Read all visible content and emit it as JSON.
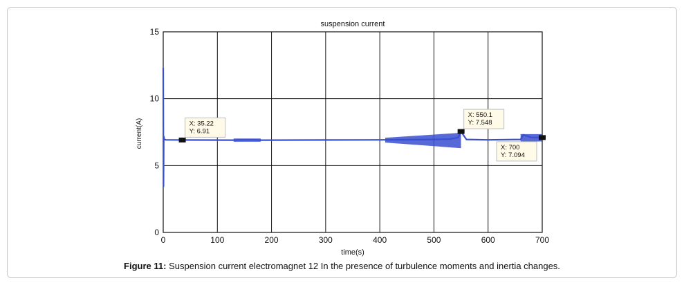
{
  "chart_data": {
    "type": "line",
    "title": "suspension current",
    "xlabel": "time(s)",
    "ylabel": "current(A)",
    "xlim": [
      0,
      700
    ],
    "ylim": [
      0,
      15
    ],
    "xticks": [
      0,
      100,
      200,
      300,
      400,
      500,
      600,
      700
    ],
    "yticks": [
      0,
      5,
      10,
      15
    ],
    "grid": true,
    "line_color": "#3a4fd0",
    "series": [
      {
        "x": [
          0,
          0.5,
          1,
          2,
          5,
          35.22,
          130,
          140,
          150,
          160,
          170,
          180,
          300,
          410,
          450,
          500,
          530,
          545,
          550.1,
          560,
          600,
          660,
          665,
          680,
          700
        ],
        "y": [
          12.3,
          3.4,
          7.2,
          6.95,
          6.92,
          6.91,
          6.9,
          6.92,
          6.92,
          6.92,
          6.92,
          6.9,
          6.91,
          6.92,
          6.93,
          6.95,
          6.98,
          7.1,
          7.548,
          6.95,
          6.92,
          6.95,
          7.3,
          7.1,
          7.094
        ],
        "bands": [
          {
            "x0": 130,
            "x1": 180,
            "lo": 6.78,
            "hi": 7.02
          },
          {
            "x0": 410,
            "x1": 550,
            "lo_start": 6.72,
            "hi_start": 7.08,
            "lo_end": 6.3,
            "hi_end": 7.45
          },
          {
            "x0": 660,
            "x1": 700,
            "lo": 6.8,
            "hi": 7.35
          }
        ]
      }
    ],
    "annotations": [
      {
        "x": 35.22,
        "y": 6.91,
        "lines": [
          "X: 35.22",
          "Y: 6.91"
        ],
        "placement": "above-right"
      },
      {
        "x": 550.1,
        "y": 7.548,
        "lines": [
          "X: 550.1",
          "Y: 7.548"
        ],
        "placement": "above-right"
      },
      {
        "x": 700,
        "y": 7.094,
        "lines": [
          "X: 700",
          "Y: 7.094"
        ],
        "placement": "below-left"
      }
    ]
  },
  "caption": {
    "label": "Figure 11:",
    "text": " Suspension current electromagnet 12 In the presence of turbulence moments and inertia changes."
  }
}
